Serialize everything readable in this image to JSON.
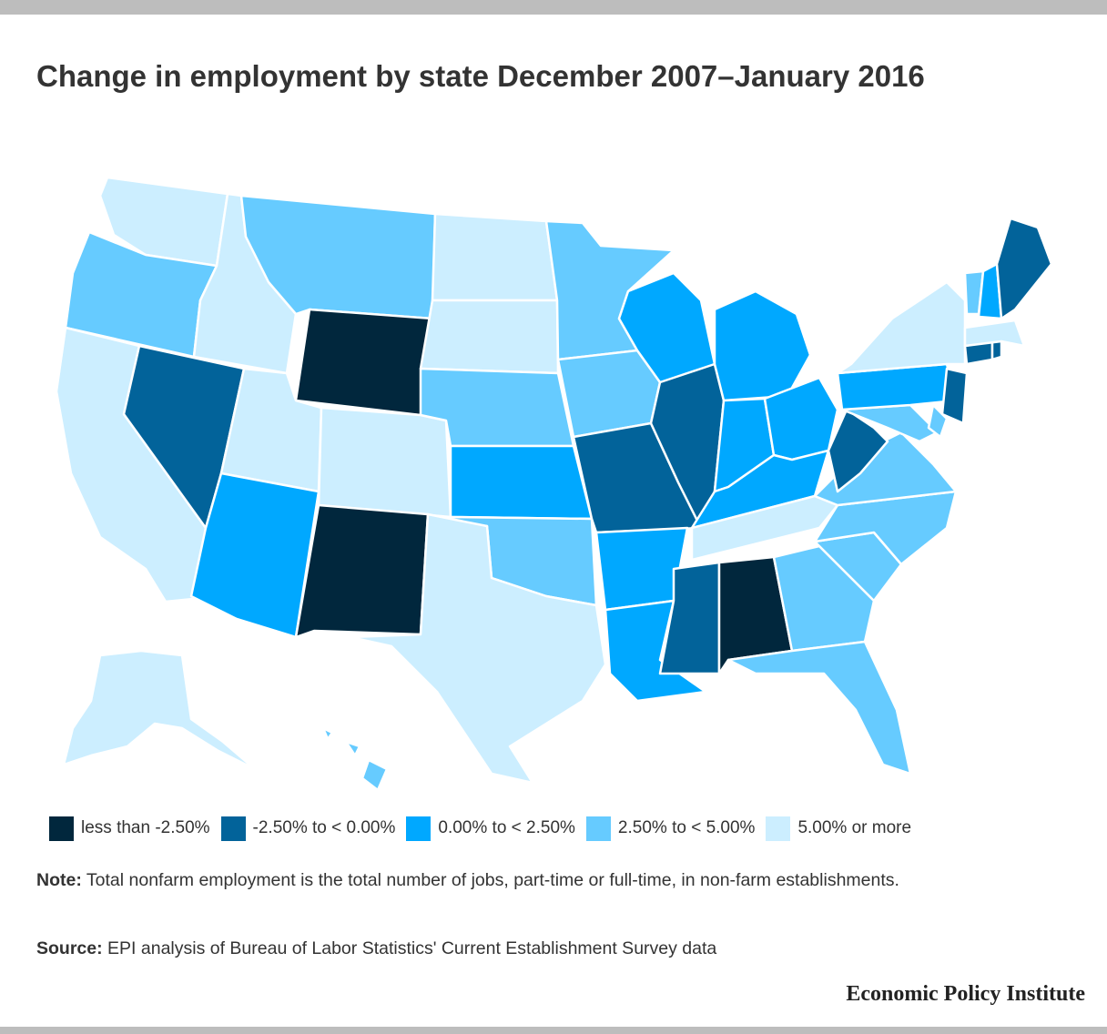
{
  "title": "Change in employment by state December 2007–January 2016",
  "legend": [
    {
      "label": "less than -2.50%",
      "color": "#01273d"
    },
    {
      "label": "-2.50% to < 0.00%",
      "color": "#02639a"
    },
    {
      "label": "0.00% to < 2.50%",
      "color": "#00a8ff"
    },
    {
      "label": "2.50% to < 5.00%",
      "color": "#66cbff"
    },
    {
      "label": "5.00% or more",
      "color": "#cceeff"
    }
  ],
  "note": {
    "label": "Note:",
    "text": " Total nonfarm employment is the total number of jobs, part-time or full-time, in non-farm establishments."
  },
  "source": {
    "label": "Source:",
    "text": " EPI analysis of Bureau of Labor Statistics' Current Establishment Survey data"
  },
  "brand": "Economic Policy Institute",
  "chart_data": {
    "type": "choropleth",
    "categories": [
      "less than -2.50%",
      "-2.50% to < 0.00%",
      "0.00% to < 2.50%",
      "2.50% to < 5.00%",
      "5.00% or more"
    ],
    "states": {
      "WA": 4,
      "OR": 3,
      "CA": 4,
      "NV": 1,
      "ID": 4,
      "MT": 3,
      "WY": 0,
      "UT": 4,
      "CO": 4,
      "AZ": 2,
      "NM": 0,
      "ND": 4,
      "SD": 4,
      "NE": 3,
      "KS": 2,
      "OK": 3,
      "TX": 4,
      "MN": 3,
      "IA": 3,
      "MO": 1,
      "AR": 2,
      "LA": 2,
      "WI": 2,
      "IL": 1,
      "MI": 2,
      "IN": 2,
      "OH": 2,
      "KY": 2,
      "TN": 4,
      "MS": 1,
      "AL": 0,
      "GA": 3,
      "FL": 3,
      "SC": 3,
      "NC": 3,
      "VA": 3,
      "WV": 1,
      "MD": 3,
      "DE": 3,
      "PA": 2,
      "NJ": 1,
      "NY": 4,
      "CT": 1,
      "RI": 1,
      "MA": 4,
      "VT": 3,
      "NH": 2,
      "ME": 1,
      "AK": 4,
      "HI": 3
    }
  }
}
